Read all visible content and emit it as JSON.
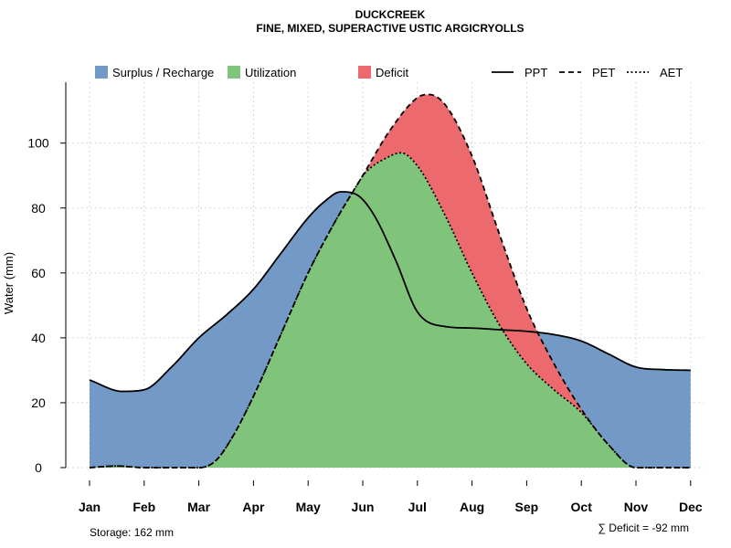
{
  "chart_data": {
    "type": "area",
    "title": "DUCKCREEK",
    "subtitle": "FINE, MIXED, SUPERACTIVE USTIC ARGICRYOLLS",
    "ylabel": "Water (mm)",
    "xlabel": "",
    "ylim": [
      0,
      118
    ],
    "yticks": [
      0,
      20,
      40,
      60,
      80,
      100
    ],
    "categories": [
      "Jan",
      "Feb",
      "Mar",
      "Apr",
      "May",
      "Jun",
      "Jul",
      "Aug",
      "Sep",
      "Oct",
      "Nov",
      "Dec"
    ],
    "grid": true,
    "legend": [
      {
        "key": "surplus",
        "label": "Surplus / Recharge",
        "type": "fill",
        "color": "#7399c6"
      },
      {
        "key": "utilization",
        "label": "Utilization",
        "type": "fill",
        "color": "#80c47b"
      },
      {
        "key": "deficit",
        "label": "Deficit",
        "type": "fill",
        "color": "#ec6a6d"
      },
      {
        "key": "ppt",
        "label": "PPT",
        "type": "line",
        "dash": "solid"
      },
      {
        "key": "pet",
        "label": "PET",
        "type": "line",
        "dash": "dashed"
      },
      {
        "key": "aet",
        "label": "AET",
        "type": "line",
        "dash": "dotted"
      }
    ],
    "series": [
      {
        "name": "PPT",
        "x": [
          1,
          1.6,
          2,
          2.5,
          3,
          3.5,
          4,
          4.5,
          5,
          5.3,
          5.6,
          5.9,
          6.2,
          6.6,
          7,
          7.5,
          8,
          8.5,
          9,
          9.5,
          10,
          10.5,
          11,
          11.5,
          12
        ],
        "values": [
          27,
          23.5,
          24,
          31,
          40,
          47,
          55,
          66,
          77,
          82,
          85,
          84,
          78,
          64,
          48,
          43.5,
          43,
          42.5,
          42,
          41,
          39,
          35,
          31,
          30.2,
          30
        ]
      },
      {
        "name": "PET",
        "x": [
          1,
          1.5,
          2,
          2.5,
          3,
          3.3,
          3.6,
          4,
          4.5,
          5,
          5.5,
          6,
          6.5,
          7,
          7.2,
          7.5,
          8,
          8.5,
          9,
          9.5,
          10,
          10.5,
          11,
          11.5,
          12
        ],
        "values": [
          0,
          0.5,
          0,
          0,
          0,
          2,
          9,
          22,
          41,
          60,
          76,
          90,
          104,
          114,
          115,
          112,
          96,
          72,
          49,
          32,
          18,
          7,
          0,
          0,
          0
        ]
      },
      {
        "name": "AET",
        "x": [
          1,
          1.5,
          2,
          2.5,
          3,
          3.3,
          3.6,
          4,
          4.5,
          5,
          5.5,
          6,
          6.5,
          6.7,
          7,
          7.5,
          8,
          8.5,
          9,
          9.5,
          10,
          10.5,
          11,
          11.5,
          12
        ],
        "values": [
          0,
          0.5,
          0,
          0,
          0,
          2,
          9,
          22,
          41,
          60,
          76,
          90,
          96,
          97,
          93,
          78,
          60,
          44,
          32,
          24,
          17,
          7,
          0,
          0,
          0
        ]
      }
    ],
    "annotations": {
      "storage": "Storage: 162 mm",
      "deficit": "∑ Deficit = -92 mm"
    }
  }
}
